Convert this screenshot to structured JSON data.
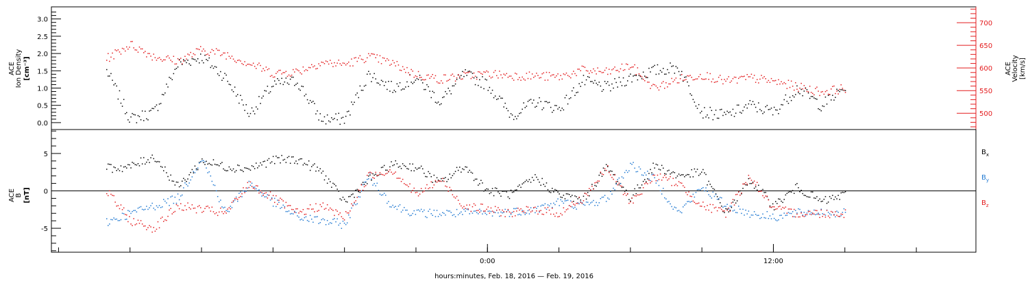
{
  "chart_data": [
    {
      "type": "scatter",
      "panel": "ace-ion-density-velocity",
      "ylabel_lines": [
        "ACE",
        "Ion Density"
      ],
      "ylabel_units": "[cm⁻³]",
      "ylim": [
        -0.2,
        3.35
      ],
      "yticks": [
        "0.0",
        "0.5",
        "1.0",
        "1.5",
        "2.0",
        "2.5",
        "3.0"
      ],
      "y2label_lines": [
        "ACE",
        "Velocity"
      ],
      "y2label_units": "[km/s]",
      "y2lim": [
        464,
        735
      ],
      "y2ticks": [
        "500",
        "550",
        "600",
        "650",
        "700"
      ],
      "series": [
        {
          "color": "#000000",
          "x": [
            -16.0,
            -15.0,
            -14.0,
            -13.0,
            -12.0,
            -11.0,
            -10.0,
            -9.0,
            -8.0,
            -7.0,
            -6.0,
            -5.0,
            -4.0,
            -3.0,
            -2.0,
            -1.0,
            0.0,
            1.0,
            2.0,
            3.0,
            4.0,
            5.0,
            6.0,
            7.0,
            8.0,
            9.0,
            10.0,
            11.0,
            12.0,
            13.0,
            14.0,
            15.0
          ],
          "y": [
            1.5,
            0.1,
            0.3,
            1.7,
            1.9,
            1.3,
            0.25,
            1.1,
            1.2,
            0.1,
            0.1,
            1.4,
            1.0,
            1.3,
            0.6,
            1.4,
            1.1,
            0.2,
            0.6,
            0.4,
            1.2,
            1.0,
            1.3,
            1.5,
            1.6,
            0.3,
            0.2,
            0.5,
            0.3,
            1.0,
            0.5,
            1.0
          ]
        },
        {
          "color": "#e31a1c",
          "x": [
            -16.0,
            -15.0,
            -14.0,
            -13.0,
            -12.0,
            -11.0,
            -10.0,
            -9.0,
            -8.0,
            -7.0,
            -6.0,
            -5.0,
            -4.0,
            -3.0,
            -2.0,
            -1.0,
            0.0,
            1.0,
            2.0,
            3.0,
            4.0,
            5.0,
            6.0,
            7.0,
            8.0,
            9.0,
            10.0,
            11.0,
            12.0,
            13.0,
            14.0,
            15.0
          ],
          "y": [
            620,
            652,
            625,
            615,
            640,
            630,
            610,
            588,
            592,
            612,
            608,
            625,
            610,
            585,
            575,
            582,
            587,
            583,
            582,
            580,
            595,
            590,
            605,
            555,
            575,
            585,
            570,
            578,
            570,
            558,
            547,
            555
          ]
        }
      ]
    },
    {
      "type": "scatter",
      "panel": "ace-magnetic-field",
      "ylabel_lines": [
        "ACE",
        "B"
      ],
      "ylabel_units": "[nT]",
      "ylim": [
        -8.2,
        8.2
      ],
      "yticks": [
        "-5",
        "0",
        "5"
      ],
      "legend_position": "right",
      "series": [
        {
          "name": "Bx",
          "label_main": "B",
          "label_sub": "x",
          "color": "#000000",
          "x": [
            -16.0,
            -15.0,
            -14.0,
            -13.0,
            -12.0,
            -11.0,
            -10.0,
            -9.0,
            -8.0,
            -7.0,
            -6.0,
            -5.0,
            -4.0,
            -3.0,
            -2.0,
            -1.0,
            0.0,
            1.0,
            2.0,
            3.0,
            4.0,
            5.0,
            6.0,
            7.0,
            8.0,
            9.0,
            10.0,
            11.0,
            12.0,
            13.0,
            14.0,
            15.0
          ],
          "y": [
            3.0,
            3.2,
            4.6,
            0.5,
            4.0,
            3.2,
            3.0,
            4.1,
            4.2,
            2.6,
            -1.5,
            1.5,
            3.5,
            3.2,
            1.0,
            3.3,
            0.0,
            -0.5,
            1.8,
            -0.6,
            -1.2,
            3.2,
            -1.0,
            3.4,
            2.0,
            2.5,
            -3.0,
            1.5,
            -2.0,
            0.5,
            -1.5,
            -0.5
          ]
        },
        {
          "name": "By",
          "label_main": "B",
          "label_sub": "y",
          "color": "#1f78d1",
          "x": [
            -16.0,
            -15.0,
            -14.0,
            -13.0,
            -12.0,
            -11.0,
            -10.0,
            -9.0,
            -8.0,
            -7.0,
            -6.0,
            -5.0,
            -4.0,
            -3.0,
            -2.0,
            -1.0,
            0.0,
            1.0,
            2.0,
            3.0,
            4.0,
            5.0,
            6.0,
            7.0,
            8.0,
            9.0,
            10.0,
            11.0,
            12.0,
            13.0,
            14.0,
            15.0
          ],
          "y": [
            -4.2,
            -3.0,
            -2.0,
            -1.0,
            4.5,
            -3.0,
            1.0,
            -1.5,
            -3.5,
            -4.0,
            -4.5,
            2.0,
            -2.0,
            -3.0,
            -3.0,
            -3.0,
            -3.0,
            -2.8,
            -2.5,
            -1.5,
            -2.0,
            -1.0,
            3.5,
            1.5,
            -3.0,
            0.5,
            -2.0,
            -3.0,
            -3.5,
            -3.0,
            -2.8,
            -3.0
          ]
        },
        {
          "name": "Bz",
          "label_main": "B",
          "label_sub": "z",
          "color": "#e31a1c",
          "x": [
            -16.0,
            -15.0,
            -14.0,
            -13.0,
            -12.0,
            -11.0,
            -10.0,
            -9.0,
            -8.0,
            -7.0,
            -6.0,
            -5.0,
            -4.0,
            -3.0,
            -2.0,
            -1.0,
            0.0,
            1.0,
            2.0,
            3.0,
            4.0,
            5.0,
            6.0,
            7.0,
            8.0,
            9.0,
            10.0,
            11.0,
            12.0,
            13.0,
            14.0,
            15.0
          ],
          "y": [
            0.0,
            -4.0,
            -5.0,
            -2.0,
            -2.5,
            -3.0,
            1.0,
            -1.0,
            -3.0,
            -2.0,
            -3.5,
            2.0,
            2.8,
            -0.5,
            1.5,
            -2.0,
            -2.5,
            -3.0,
            -2.5,
            -3.0,
            -1.0,
            3.0,
            -1.5,
            2.0,
            1.0,
            -2.0,
            -3.0,
            2.0,
            -2.5,
            -3.0,
            -3.0,
            -3.0
          ]
        }
      ]
    }
  ],
  "time_axis": {
    "xlim": [
      -18.3,
      20.5
    ],
    "tick_labels": [
      {
        "t": 0,
        "label": "0:00"
      },
      {
        "t": 12,
        "label": "12:00"
      }
    ],
    "minor_tick_hours": [
      -18,
      -15,
      -12,
      -9,
      -6,
      -3,
      0,
      3,
      6,
      9,
      12,
      15,
      18
    ],
    "xlabel": "hours:minutes, Feb. 18, 2016 — Feb. 19, 2016"
  },
  "colors": {
    "frame": "#000000",
    "velocity_axis": "#e31a1c",
    "density": "#000000",
    "bx": "#000000",
    "by": "#1f78d1",
    "bz": "#e31a1c"
  }
}
